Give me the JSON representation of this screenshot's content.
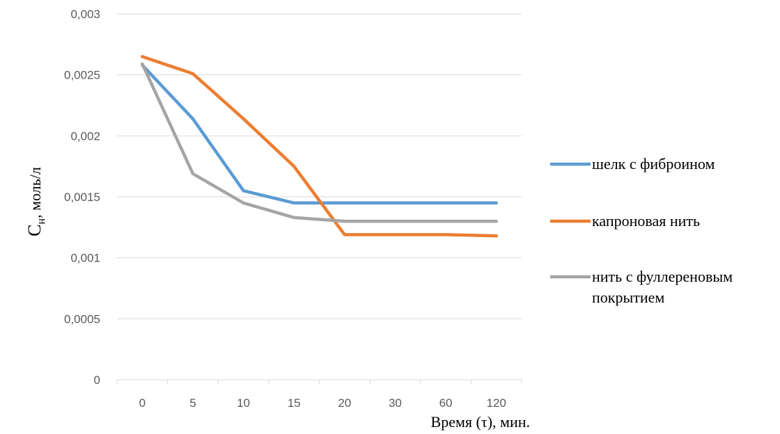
{
  "chart_data": {
    "type": "line",
    "categories": [
      "0",
      "5",
      "10",
      "15",
      "20",
      "30",
      "60",
      "120"
    ],
    "series": [
      {
        "name": "шелк с фиброином",
        "color": "#5B9BD5",
        "values": [
          0.00258,
          0.00214,
          0.00155,
          0.00145,
          0.00145,
          0.00145,
          0.00145,
          0.00145
        ]
      },
      {
        "name": "капроновая нить",
        "color": "#ED7D31",
        "values": [
          0.00265,
          0.00251,
          0.00214,
          0.00175,
          0.00119,
          0.00119,
          0.00119,
          0.00118
        ]
      },
      {
        "name": "нить с фуллереновым покрытием",
        "legend_lines": [
          "нить с фуллереновым",
          "покрытием"
        ],
        "color": "#A5A5A5",
        "values": [
          0.00259,
          0.00169,
          0.00145,
          0.00133,
          0.0013,
          0.0013,
          0.0013,
          0.0013
        ]
      }
    ],
    "ylim": [
      0,
      0.003
    ],
    "yticks": [
      0,
      0.0005,
      0.001,
      0.0015,
      0.002,
      0.0025,
      0.003
    ],
    "ytick_labels": [
      "0",
      "0,0005",
      "0,001",
      "0,0015",
      "0,002",
      "0,0025",
      "0,003"
    ],
    "ylabel_main": "С",
    "ylabel_sub": "н",
    "ylabel_rest": ", моль/л",
    "xlabel": "Время (τ), мин.",
    "grid": true,
    "legend_position": "right",
    "grid_color": "#D9D9D9"
  }
}
